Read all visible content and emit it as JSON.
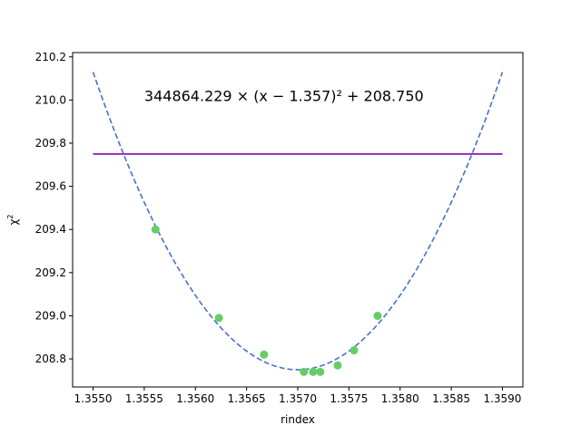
{
  "chart_data": {
    "type": "scatter",
    "xlabel": "rindex",
    "ylabel_base": "χ",
    "ylabel_sup": "2",
    "annotation": "344864.229 × (x − 1.357)² + 208.750",
    "annotation_x": 1.3555,
    "annotation_y": 210.0,
    "xlim": [
      1.3548,
      1.3592
    ],
    "ylim": [
      208.67,
      210.22
    ],
    "x_ticks": [
      1.355,
      1.3555,
      1.356,
      1.3565,
      1.357,
      1.3575,
      1.358,
      1.3585,
      1.359
    ],
    "x_tick_labels": [
      "1.3550",
      "1.3555",
      "1.3560",
      "1.3565",
      "1.3570",
      "1.3575",
      "1.3580",
      "1.3585",
      "1.3590"
    ],
    "y_ticks": [
      208.8,
      209.0,
      209.2,
      209.4,
      209.6,
      209.8,
      210.0,
      210.2
    ],
    "y_tick_labels": [
      "208.8",
      "209.0",
      "209.2",
      "209.4",
      "209.6",
      "209.8",
      "210.0",
      "210.2"
    ],
    "points": {
      "color": "#66cc66",
      "x": [
        1.35561,
        1.35623,
        1.35667,
        1.35706,
        1.35715,
        1.35722,
        1.35739,
        1.35755,
        1.35778
      ],
      "y": [
        209.4,
        208.99,
        208.82,
        208.74,
        208.74,
        208.74,
        208.77,
        208.84,
        209.0
      ]
    },
    "fit": {
      "color": "#4472c4",
      "style": "dashed",
      "a": 344864.229,
      "x0": 1.357,
      "c": 208.75,
      "x_range": [
        1.355,
        1.359
      ]
    },
    "threshold": {
      "color": "#8800bb",
      "y": 209.75,
      "x_range": [
        1.355,
        1.359
      ]
    },
    "grid": false
  }
}
